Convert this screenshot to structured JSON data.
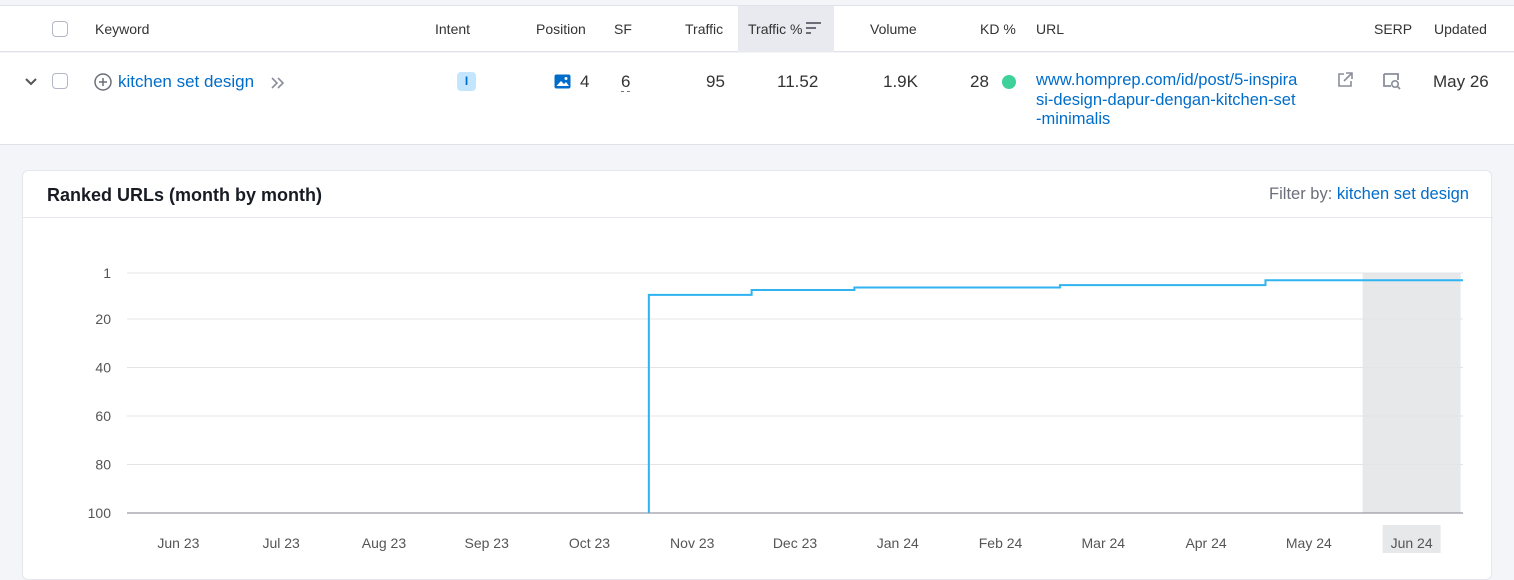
{
  "table": {
    "headers": {
      "keyword": "Keyword",
      "intent": "Intent",
      "position": "Position",
      "sf": "SF",
      "traffic": "Traffic",
      "traffic_pct": "Traffic %",
      "volume": "Volume",
      "kd": "KD %",
      "url": "URL",
      "serp": "SERP",
      "updated": "Updated"
    },
    "row": {
      "keyword": "kitchen set design",
      "intent": "I",
      "position": "4",
      "sf": "6",
      "traffic": "95",
      "traffic_pct": "11.52",
      "volume": "1.9K",
      "kd": "28",
      "kd_color": "#3fd19a",
      "url_lines": [
        "www.homprep.com/id/post/5-inspira",
        "si-design-dapur-dengan-kitchen-set",
        "-minimalis"
      ],
      "updated": "May 26"
    }
  },
  "panel": {
    "title": "Ranked URLs (month by month)",
    "filter_label": "Filter by:",
    "filter_value": "kitchen set design"
  },
  "chart_data": {
    "type": "line",
    "y_inverted": true,
    "ylim": [
      1,
      100
    ],
    "yticks": [
      "1",
      "20",
      "40",
      "60",
      "80",
      "100"
    ],
    "x": [
      "Jun 23",
      "Jul 23",
      "Aug 23",
      "Sep 23",
      "Oct 23",
      "Nov 23",
      "Dec 23",
      "Jan 24",
      "Feb 24",
      "Mar 24",
      "Apr 24",
      "May 24",
      "Jun 24"
    ],
    "series": [
      {
        "color": "#2fb3f1",
        "values": [
          null,
          null,
          null,
          null,
          null,
          10,
          8,
          7,
          7,
          6,
          6,
          4,
          4
        ]
      }
    ],
    "highlight_x": "Jun 24",
    "grid": true,
    "legend": "none"
  }
}
